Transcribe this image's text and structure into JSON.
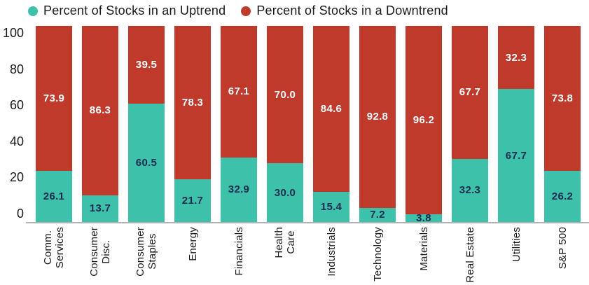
{
  "legend": {
    "items": [
      {
        "label": "Percent of Stocks in an Uptrend",
        "color": "#3EC1AB"
      },
      {
        "label": "Percent of Stocks in a Downtrend",
        "color": "#BF3A2B"
      }
    ]
  },
  "chart_data": {
    "type": "bar",
    "stacked": true,
    "title": "",
    "xlabel": "",
    "ylabel": "",
    "ylim": [
      0,
      100
    ],
    "yticks": [
      0,
      20,
      40,
      60,
      80,
      100
    ],
    "grid": false,
    "legend_position": "top-left",
    "value_label_format": "one-decimal",
    "categories": [
      "Comm.\nServices",
      "Consumer\nDisc.",
      "Consumer\nStaples",
      "Energy",
      "Financials",
      "Health\nCare",
      "Industrials",
      "Technology",
      "Materials",
      "Real Estate",
      "Utilities",
      "S&P 500"
    ],
    "series": [
      {
        "name": "Percent of Stocks in an Uptrend",
        "color": "#3EC1AB",
        "label_color": "#1B2B4D",
        "values": [
          26.1,
          13.7,
          60.5,
          21.7,
          32.9,
          30.0,
          15.4,
          7.2,
          3.8,
          32.3,
          67.7,
          26.2
        ]
      },
      {
        "name": "Percent of Stocks in a Downtrend",
        "color": "#BF3A2B",
        "label_color": "#FFFFFF",
        "values": [
          73.9,
          86.3,
          39.5,
          78.3,
          67.1,
          70.0,
          84.6,
          92.8,
          96.2,
          67.7,
          32.3,
          73.8
        ]
      }
    ]
  },
  "colors": {
    "background": "#FFFFFF",
    "axis_line": "#B3B3B3",
    "axis_text": "#1A1A1A"
  }
}
